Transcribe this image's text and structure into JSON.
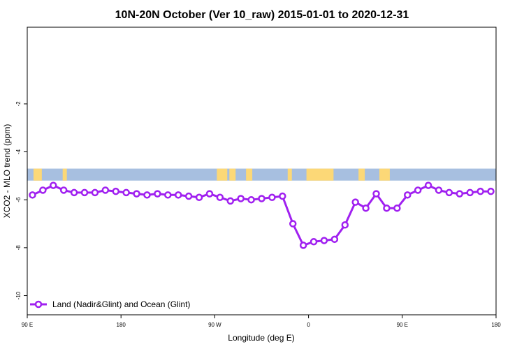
{
  "chart_data": {
    "type": "line",
    "title": "10N-20N October (Ver 10_raw)   2015-01-01 to 2020-12-31",
    "xlabel": "Longitude (deg E)",
    "ylabel": "XCO2 - MLO trend (ppm)",
    "xlim": [
      90,
      540
    ],
    "ylim": [
      -10.8,
      1.2
    ],
    "x_ticks": [
      {
        "value": 90,
        "label": "90 E"
      },
      {
        "value": 180,
        "label": "180"
      },
      {
        "value": 270,
        "label": "90 W"
      },
      {
        "value": 360,
        "label": "0"
      },
      {
        "value": 450,
        "label": "90 E"
      },
      {
        "value": 540,
        "label": "180"
      }
    ],
    "y_ticks": [
      {
        "value": -2,
        "label": "-2"
      },
      {
        "value": -4,
        "label": "-4"
      },
      {
        "value": -6,
        "label": "-6"
      },
      {
        "value": -8,
        "label": "-8"
      },
      {
        "value": -10,
        "label": "-10"
      }
    ],
    "legend": {
      "position": "bottom-left",
      "label": "Land (Nadir&Glint) and Ocean (Glint)"
    },
    "series": [
      {
        "name": "Land (Nadir&Glint) and Ocean (Glint)",
        "color": "#a020f0",
        "x": [
          95,
          105,
          115,
          125,
          135,
          145,
          155,
          165,
          175,
          185,
          195,
          205,
          215,
          225,
          235,
          245,
          255,
          265,
          275,
          285,
          295,
          305,
          315,
          325,
          335,
          345,
          355,
          365,
          375,
          385,
          395,
          405,
          415,
          425,
          435,
          445,
          455,
          465,
          475,
          485,
          495,
          505,
          515,
          525,
          535
        ],
        "y": [
          -5.8,
          -5.6,
          -5.4,
          -5.6,
          -5.7,
          -5.7,
          -5.7,
          -5.6,
          -5.65,
          -5.7,
          -5.75,
          -5.8,
          -5.75,
          -5.8,
          -5.8,
          -5.85,
          -5.9,
          -5.75,
          -5.9,
          -6.05,
          -5.95,
          -6.0,
          -5.95,
          -5.9,
          -5.85,
          -7.0,
          -7.9,
          -7.75,
          -7.7,
          -7.65,
          -7.05,
          -6.1,
          -6.35,
          -5.75,
          -6.35,
          -6.35,
          -5.8,
          -5.6,
          -5.4,
          -5.6,
          -5.7,
          -5.75,
          -5.7,
          -5.65,
          -5.65
        ]
      }
    ],
    "map_band": {
      "y_range": [
        -5.2,
        -4.7
      ],
      "ocean_color": "#a7bfe0",
      "land_color": "#fcd877"
    }
  }
}
